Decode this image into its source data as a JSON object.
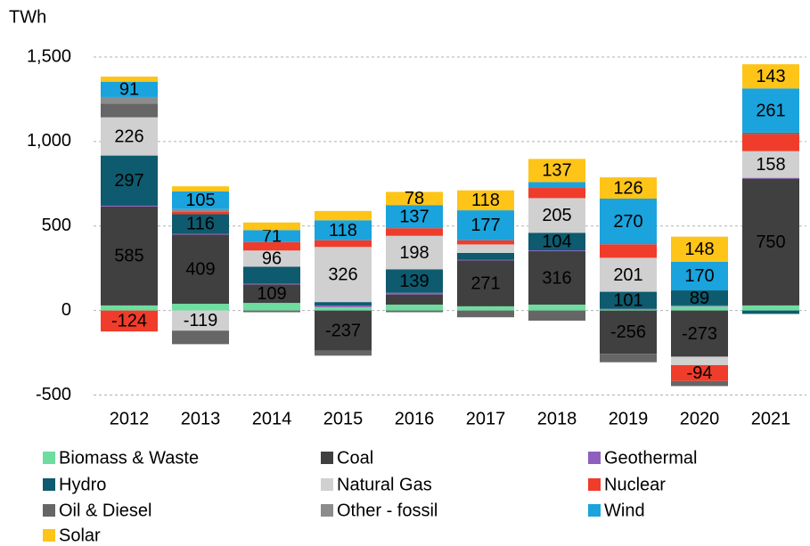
{
  "chart_data": {
    "type": "stacked_bar",
    "y_label": "TWh",
    "categories": [
      "2012",
      "2013",
      "2014",
      "2015",
      "2016",
      "2017",
      "2018",
      "2019",
      "2020",
      "2021"
    ],
    "ylim": [
      -550,
      1600
    ],
    "yticks": [
      {
        "value": 1500,
        "label": "1,500"
      },
      {
        "value": 1000,
        "label": "1,000"
      },
      500,
      0,
      -500
    ],
    "grid": true,
    "legend": "bottom",
    "series": [
      {
        "name": "Biomass & Waste",
        "color": "#6fdca0",
        "values": [
          30,
          40,
          45,
          20,
          35,
          25,
          35,
          5,
          25,
          30
        ],
        "value_labels": [
          null,
          null,
          null,
          null,
          null,
          null,
          null,
          null,
          null,
          null
        ]
      },
      {
        "name": "Coal",
        "color": "#404040",
        "values": [
          585,
          409,
          109,
          -237,
          60,
          271,
          316,
          -256,
          -273,
          750
        ],
        "value_labels": [
          585,
          409,
          109,
          -237,
          null,
          271,
          316,
          -256,
          -273,
          750
        ]
      },
      {
        "name": "Geothermal",
        "color": "#8e5fbf",
        "values": [
          5,
          5,
          5,
          10,
          10,
          5,
          5,
          5,
          5,
          5
        ],
        "value_labels": [
          null,
          null,
          null,
          null,
          null,
          null,
          null,
          null,
          null,
          null
        ]
      },
      {
        "name": "Hydro",
        "color": "#0e5a6e",
        "values": [
          297,
          116,
          100,
          20,
          139,
          40,
          104,
          101,
          89,
          -20
        ],
        "value_labels": [
          297,
          116,
          null,
          null,
          139,
          null,
          104,
          101,
          89,
          null
        ]
      },
      {
        "name": "Natural Gas",
        "color": "#d0d0d0",
        "values": [
          226,
          -119,
          96,
          326,
          198,
          50,
          205,
          201,
          -50,
          158
        ],
        "value_labels": [
          226,
          -119,
          96,
          326,
          198,
          null,
          205,
          201,
          null,
          158
        ]
      },
      {
        "name": "Nuclear",
        "color": "#f03c2a",
        "values": [
          -124,
          15,
          50,
          40,
          45,
          25,
          60,
          80,
          -94,
          100
        ],
        "value_labels": [
          -124,
          null,
          null,
          null,
          null,
          null,
          null,
          null,
          -94,
          null
        ]
      },
      {
        "name": "Oil & Diesel",
        "color": "#666666",
        "values": [
          80,
          -80,
          -10,
          -30,
          -10,
          -40,
          -60,
          -50,
          -30,
          10
        ],
        "value_labels": [
          null,
          null,
          null,
          null,
          null,
          null,
          null,
          null,
          null,
          null
        ]
      },
      {
        "name": "Other - fossil",
        "color": "#8c8c8c",
        "values": [
          40,
          15,
          0,
          0,
          0,
          0,
          0,
          0,
          0,
          0
        ],
        "value_labels": [
          null,
          null,
          null,
          null,
          null,
          null,
          null,
          null,
          null,
          null
        ]
      },
      {
        "name": "Wind",
        "color": "#1aa3dc",
        "values": [
          91,
          105,
          71,
          118,
          137,
          177,
          35,
          270,
          170,
          261
        ],
        "value_labels": [
          91,
          105,
          71,
          118,
          137,
          177,
          null,
          270,
          170,
          261
        ]
      },
      {
        "name": "Solar",
        "color": "#fec418",
        "values": [
          30,
          30,
          45,
          55,
          78,
          118,
          137,
          126,
          148,
          143
        ],
        "value_labels": [
          null,
          null,
          null,
          null,
          78,
          118,
          137,
          126,
          148,
          143
        ]
      }
    ]
  }
}
